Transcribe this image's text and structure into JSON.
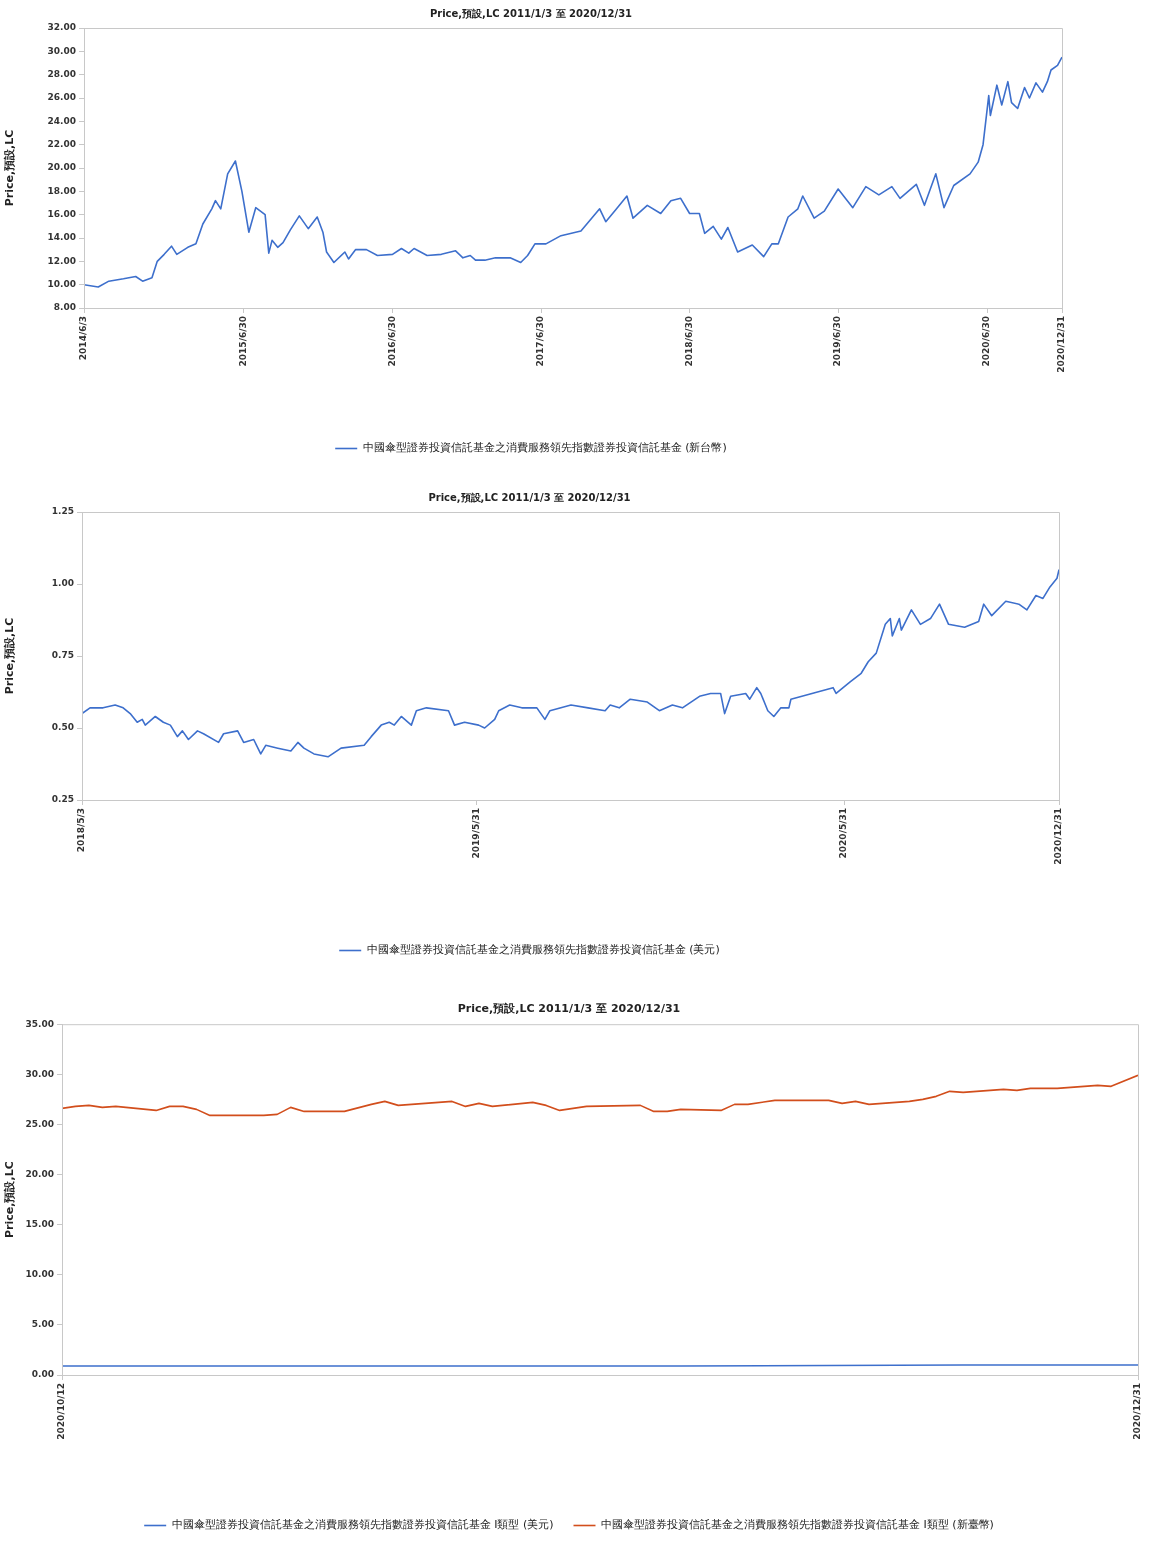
{
  "chart_data": [
    {
      "type": "line",
      "title": "Price,預設,LC 2011/1/3 至 2020/12/31",
      "ylabel": "Price,預設,LC",
      "legend": "bottom",
      "marker": "none",
      "xlim": [
        "2014-06-03",
        "2020-12-31"
      ],
      "xticks": [
        {
          "value": "2014-06-03",
          "label": "2014/6/3"
        },
        {
          "value": "2015-06-30",
          "label": "2015/6/30"
        },
        {
          "value": "2016-06-30",
          "label": "2016/6/30"
        },
        {
          "value": "2017-06-30",
          "label": "2017/6/30"
        },
        {
          "value": "2018-06-30",
          "label": "2018/6/30"
        },
        {
          "value": "2019-06-30",
          "label": "2019/6/30"
        },
        {
          "value": "2020-06-30",
          "label": "2020/6/30"
        },
        {
          "value": "2020-12-31",
          "label": "2020/12/31"
        }
      ],
      "ylim": [
        8,
        32
      ],
      "yticks": [
        {
          "value": 8,
          "label": "8.00"
        },
        {
          "value": 10,
          "label": "10.00"
        },
        {
          "value": 12,
          "label": "12.00"
        },
        {
          "value": 14,
          "label": "14.00"
        },
        {
          "value": 16,
          "label": "16.00"
        },
        {
          "value": 18,
          "label": "18.00"
        },
        {
          "value": 20,
          "label": "20.00"
        },
        {
          "value": 22,
          "label": "22.00"
        },
        {
          "value": 24,
          "label": "24.00"
        },
        {
          "value": 26,
          "label": "26.00"
        },
        {
          "value": 28,
          "label": "28.00"
        },
        {
          "value": 30,
          "label": "30.00"
        },
        {
          "value": 32,
          "label": "32.00"
        }
      ],
      "series": [
        {
          "name": "中國傘型證券投資信託基金之消費服務領先指數證券投資信託基金 (新台幣)",
          "color": "#3d6fcc",
          "x": [
            "2014-06-03",
            "2014-07-08",
            "2014-08-03",
            "2014-09-08",
            "2014-10-08",
            "2014-10-25",
            "2014-11-17",
            "2014-11-30",
            "2014-12-17",
            "2015-01-04",
            "2015-01-17",
            "2015-02-13",
            "2015-03-05",
            "2015-03-22",
            "2015-04-13",
            "2015-04-22",
            "2015-05-05",
            "2015-05-22",
            "2015-06-10",
            "2015-06-26",
            "2015-07-13",
            "2015-07-30",
            "2015-08-22",
            "2015-08-31",
            "2015-09-08",
            "2015-09-22",
            "2015-10-05",
            "2015-10-23",
            "2015-11-14",
            "2015-12-06",
            "2015-12-28",
            "2016-01-11",
            "2016-01-20",
            "2016-02-07",
            "2016-03-05",
            "2016-03-14",
            "2016-03-31",
            "2016-04-27",
            "2016-05-24",
            "2016-06-30",
            "2016-07-22",
            "2016-08-09",
            "2016-08-22",
            "2016-09-23",
            "2016-10-28",
            "2016-12-02",
            "2016-12-20",
            "2017-01-07",
            "2017-01-20",
            "2017-02-12",
            "2017-03-10",
            "2017-04-15",
            "2017-05-11",
            "2017-05-28",
            "2017-06-15",
            "2017-07-12",
            "2017-08-18",
            "2017-10-06",
            "2017-11-21",
            "2017-12-06",
            "2017-12-30",
            "2018-01-27",
            "2018-02-11",
            "2018-03-18",
            "2018-04-20",
            "2018-05-15",
            "2018-06-08",
            "2018-06-30",
            "2018-07-24",
            "2018-08-06",
            "2018-08-27",
            "2018-09-16",
            "2018-10-02",
            "2018-10-26",
            "2018-12-01",
            "2018-12-29",
            "2019-01-18",
            "2019-02-03",
            "2019-02-27",
            "2019-03-23",
            "2019-04-04",
            "2019-05-02",
            "2019-05-27",
            "2019-06-30",
            "2019-08-05",
            "2019-09-06",
            "2019-10-08",
            "2019-11-09",
            "2019-11-29",
            "2020-01-08",
            "2020-01-28",
            "2020-02-25",
            "2020-03-16",
            "2020-04-09",
            "2020-05-19",
            "2020-06-08",
            "2020-06-20",
            "2020-07-04",
            "2020-07-08",
            "2020-07-24",
            "2020-08-05",
            "2020-08-20",
            "2020-08-29",
            "2020-09-13",
            "2020-09-30",
            "2020-10-12",
            "2020-10-28",
            "2020-11-13",
            "2020-11-25",
            "2020-12-04",
            "2020-12-20",
            "2020-12-31"
          ],
          "values": [
            10.0,
            9.8,
            10.3,
            10.5,
            10.7,
            10.3,
            10.6,
            12.0,
            12.6,
            13.3,
            12.6,
            13.2,
            13.5,
            15.2,
            16.5,
            17.2,
            16.5,
            19.5,
            20.6,
            18.0,
            14.5,
            16.6,
            16.0,
            12.7,
            13.8,
            13.2,
            13.6,
            14.7,
            15.9,
            14.8,
            15.8,
            14.5,
            12.8,
            11.9,
            12.8,
            12.2,
            13.0,
            13.0,
            12.5,
            12.6,
            13.1,
            12.7,
            13.1,
            12.5,
            12.6,
            12.9,
            12.3,
            12.5,
            12.1,
            12.1,
            12.3,
            12.3,
            11.9,
            12.5,
            13.5,
            13.5,
            14.2,
            14.6,
            16.5,
            15.4,
            16.4,
            17.6,
            15.7,
            16.8,
            16.1,
            17.2,
            17.4,
            16.1,
            16.1,
            14.4,
            15.0,
            13.9,
            14.9,
            12.8,
            13.4,
            12.4,
            13.5,
            13.5,
            15.8,
            16.5,
            17.6,
            15.7,
            16.3,
            18.2,
            16.6,
            18.4,
            17.7,
            18.4,
            17.4,
            18.6,
            16.8,
            19.5,
            16.6,
            18.5,
            19.5,
            20.5,
            22.0,
            26.2,
            24.5,
            27.1,
            25.4,
            27.4,
            25.6,
            25.1,
            26.9,
            26.0,
            27.3,
            26.5,
            27.4,
            28.4,
            28.8,
            29.5
          ]
        }
      ]
    },
    {
      "type": "line",
      "title": "Price,預設,LC 2011/1/3 至 2020/12/31",
      "ylabel": "Price,預設,LC",
      "legend": "bottom",
      "marker": "none",
      "xlim": [
        "2018-05-03",
        "2020-12-31"
      ],
      "xticks": [
        {
          "value": "2018-05-03",
          "label": "2018/5/3"
        },
        {
          "value": "2019-05-31",
          "label": "2019/5/31"
        },
        {
          "value": "2020-05-31",
          "label": "2020/5/31"
        },
        {
          "value": "2020-12-31",
          "label": "2020/12/31"
        }
      ],
      "ylim": [
        0.25,
        1.25
      ],
      "yticks": [
        {
          "value": 0.25,
          "label": "0.25"
        },
        {
          "value": 0.5,
          "label": "0.50"
        },
        {
          "value": 0.75,
          "label": "0.75"
        },
        {
          "value": 1,
          "label": "1.00"
        },
        {
          "value": 1.25,
          "label": "1.25"
        }
      ],
      "series": [
        {
          "name": "中國傘型證券投資信託基金之消費服務領先指數證券投資信託基金 (美元)",
          "color": "#3d6fcc",
          "x": [
            "2018-05-03",
            "2018-05-11",
            "2018-05-24",
            "2018-06-05",
            "2018-06-13",
            "2018-06-20",
            "2018-06-27",
            "2018-07-02",
            "2018-07-05",
            "2018-07-15",
            "2018-07-23",
            "2018-07-30",
            "2018-08-06",
            "2018-08-11",
            "2018-08-17",
            "2018-08-26",
            "2018-09-01",
            "2018-09-16",
            "2018-09-21",
            "2018-10-05",
            "2018-10-11",
            "2018-10-21",
            "2018-10-28",
            "2018-11-02",
            "2018-11-14",
            "2018-11-27",
            "2018-12-04",
            "2018-12-10",
            "2018-12-20",
            "2019-01-03",
            "2019-01-16",
            "2019-02-08",
            "2019-02-15",
            "2019-02-25",
            "2019-03-05",
            "2019-03-10",
            "2019-03-17",
            "2019-03-27",
            "2019-04-01",
            "2019-04-11",
            "2019-05-03",
            "2019-05-09",
            "2019-05-19",
            "2019-06-02",
            "2019-06-08",
            "2019-06-18",
            "2019-06-22",
            "2019-07-03",
            "2019-07-15",
            "2019-07-30",
            "2019-08-07",
            "2019-08-12",
            "2019-09-02",
            "2019-09-19",
            "2019-10-06",
            "2019-10-11",
            "2019-10-20",
            "2019-10-31",
            "2019-11-17",
            "2019-11-29",
            "2019-12-12",
            "2019-12-22",
            "2020-01-08",
            "2020-01-19",
            "2020-01-29",
            "2020-02-02",
            "2020-02-08",
            "2020-02-23",
            "2020-02-27",
            "2020-03-05",
            "2020-03-09",
            "2020-03-16",
            "2020-03-22",
            "2020-03-29",
            "2020-04-06",
            "2020-04-08",
            "2020-04-29",
            "2020-05-20",
            "2020-05-23",
            "2020-06-06",
            "2020-06-17",
            "2020-06-24",
            "2020-07-02",
            "2020-07-11",
            "2020-07-16",
            "2020-07-18",
            "2020-07-25",
            "2020-07-27",
            "2020-08-06",
            "2020-08-15",
            "2020-08-25",
            "2020-09-03",
            "2020-09-12",
            "2020-09-28",
            "2020-10-12",
            "2020-10-17",
            "2020-10-25",
            "2020-11-08",
            "2020-11-21",
            "2020-11-29",
            "2020-12-08",
            "2020-12-15",
            "2020-12-22",
            "2020-12-29",
            "2020-12-31"
          ],
          "values": [
            0.55,
            0.57,
            0.57,
            0.58,
            0.57,
            0.55,
            0.52,
            0.53,
            0.51,
            0.54,
            0.52,
            0.51,
            0.47,
            0.49,
            0.46,
            0.49,
            0.48,
            0.45,
            0.48,
            0.49,
            0.45,
            0.46,
            0.41,
            0.44,
            0.43,
            0.42,
            0.45,
            0.43,
            0.41,
            0.4,
            0.43,
            0.44,
            0.47,
            0.51,
            0.52,
            0.51,
            0.54,
            0.51,
            0.56,
            0.57,
            0.56,
            0.51,
            0.52,
            0.51,
            0.5,
            0.53,
            0.56,
            0.58,
            0.57,
            0.57,
            0.53,
            0.56,
            0.58,
            0.57,
            0.56,
            0.58,
            0.57,
            0.6,
            0.59,
            0.56,
            0.58,
            0.57,
            0.61,
            0.62,
            0.62,
            0.55,
            0.61,
            0.62,
            0.6,
            0.64,
            0.62,
            0.56,
            0.54,
            0.57,
            0.57,
            0.6,
            0.62,
            0.64,
            0.62,
            0.66,
            0.69,
            0.73,
            0.76,
            0.86,
            0.88,
            0.82,
            0.88,
            0.84,
            0.91,
            0.86,
            0.88,
            0.93,
            0.86,
            0.85,
            0.87,
            0.93,
            0.89,
            0.94,
            0.93,
            0.91,
            0.96,
            0.95,
            0.99,
            1.02,
            1.05
          ]
        }
      ]
    },
    {
      "type": "line",
      "title": "Price,預設,LC 2011/1/3 至 2020/12/31",
      "ylabel": "Price,預設,LC",
      "legend": "bottom",
      "marker": "none",
      "xlim": [
        "2020-10-12",
        "2020-12-31"
      ],
      "xticks": [
        {
          "value": "2020-10-12",
          "label": "2020/10/12"
        },
        {
          "value": "2020-12-31",
          "label": "2020/12/31"
        }
      ],
      "ylim": [
        0,
        35
      ],
      "yticks": [
        {
          "value": 0,
          "label": "0.00"
        },
        {
          "value": 5,
          "label": "5.00"
        },
        {
          "value": 10,
          "label": "10.00"
        },
        {
          "value": 15,
          "label": "15.00"
        },
        {
          "value": 20,
          "label": "20.00"
        },
        {
          "value": 25,
          "label": "25.00"
        },
        {
          "value": 30,
          "label": "30.00"
        },
        {
          "value": 35,
          "label": "35.00"
        }
      ],
      "series": [
        {
          "name": "中國傘型證券投資信託基金之消費服務領先指數證券投資信託基金 I類型 (美元)",
          "color": "#3d6fcc",
          "x": [
            "2020-10-12",
            "2020-11-06",
            "2020-11-27",
            "2020-12-18",
            "2020-12-31"
          ],
          "values": [
            0.9,
            0.9,
            0.9,
            1.0,
            1.0
          ]
        },
        {
          "name": "中國傘型證券投資信託基金之消費服務領先指數證券投資信託基金 I類型 (新臺幣)",
          "color": "#d24e1c",
          "x": [
            "2020-10-12",
            "2020-10-13",
            "2020-10-14",
            "2020-10-15",
            "2020-10-16",
            "2020-10-19",
            "2020-10-20",
            "2020-10-21",
            "2020-10-22",
            "2020-10-23",
            "2020-10-27",
            "2020-10-28",
            "2020-10-29",
            "2020-10-30",
            "2020-11-02",
            "2020-11-04",
            "2020-11-05",
            "2020-11-06",
            "2020-11-10",
            "2020-11-11",
            "2020-11-12",
            "2020-11-13",
            "2020-11-16",
            "2020-11-17",
            "2020-11-18",
            "2020-11-20",
            "2020-11-24",
            "2020-11-25",
            "2020-11-26",
            "2020-11-27",
            "2020-11-30",
            "2020-12-01",
            "2020-12-02",
            "2020-12-04",
            "2020-12-08",
            "2020-12-09",
            "2020-12-10",
            "2020-12-11",
            "2020-12-14",
            "2020-12-15",
            "2020-12-16",
            "2020-12-17",
            "2020-12-18",
            "2020-12-21",
            "2020-12-22",
            "2020-12-23",
            "2020-12-25",
            "2020-12-28",
            "2020-12-29",
            "2020-12-31"
          ],
          "values": [
            26.6,
            26.8,
            26.9,
            26.7,
            26.8,
            26.4,
            26.8,
            26.8,
            26.5,
            25.9,
            25.9,
            26.0,
            26.7,
            26.3,
            26.3,
            27.0,
            27.3,
            26.9,
            27.3,
            26.8,
            27.1,
            26.8,
            27.2,
            26.9,
            26.4,
            26.8,
            26.9,
            26.3,
            26.3,
            26.5,
            26.4,
            27.0,
            27.0,
            27.4,
            27.4,
            27.1,
            27.3,
            27.0,
            27.3,
            27.5,
            27.8,
            28.3,
            28.2,
            28.5,
            28.4,
            28.6,
            28.6,
            28.9,
            28.8,
            29.9
          ]
        }
      ]
    }
  ]
}
